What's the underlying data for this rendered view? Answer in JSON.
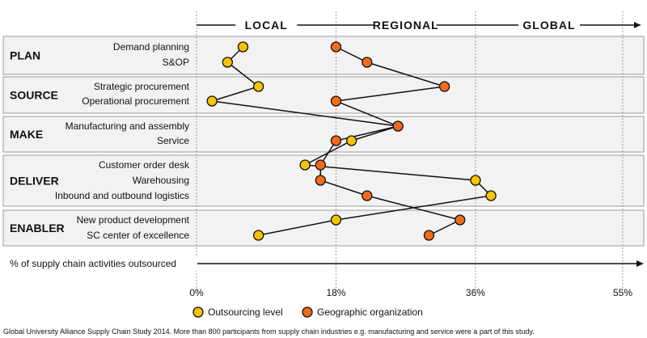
{
  "chart_data": {
    "type": "scatter",
    "title": "",
    "scope_labels": [
      "LOCAL",
      "REGIONAL",
      "GLOBAL"
    ],
    "xlabel": "% of supply chain activities outsourced",
    "x_ticks": [
      "0%",
      "18%",
      "36%",
      "55%"
    ],
    "x_tick_values": [
      0,
      18,
      36,
      55
    ],
    "xlim": [
      0,
      55
    ],
    "groups": [
      {
        "name": "PLAN",
        "rows": [
          "Demand planning",
          "S&OP"
        ]
      },
      {
        "name": "SOURCE",
        "rows": [
          "Strategic procurement",
          "Operational procurement"
        ]
      },
      {
        "name": "MAKE",
        "rows": [
          "Manufacturing and assembly",
          "Service"
        ]
      },
      {
        "name": "DELIVER",
        "rows": [
          "Customer order desk",
          "Warehousing",
          "Inbound and outbound logistics"
        ]
      },
      {
        "name": "ENABLER",
        "rows": [
          "New product development",
          "SC center of excellence"
        ]
      }
    ],
    "series": [
      {
        "name": "Outsourcing level",
        "color": "#f5c400",
        "values": [
          6,
          4,
          8,
          2,
          26,
          20,
          14,
          36,
          38,
          18,
          8
        ]
      },
      {
        "name": "Geographic organization",
        "color": "#f26b1d",
        "values": [
          18,
          22,
          32,
          18,
          26,
          18,
          16,
          16,
          22,
          34,
          30
        ]
      }
    ],
    "grid": "vertical-dashed",
    "legend_position": "bottom-center"
  },
  "source_note": "Global University Alliance Supply Chain Study 2014. More than 800 participants from supply chain industries e.g. manufacturing and service were a part of this study."
}
